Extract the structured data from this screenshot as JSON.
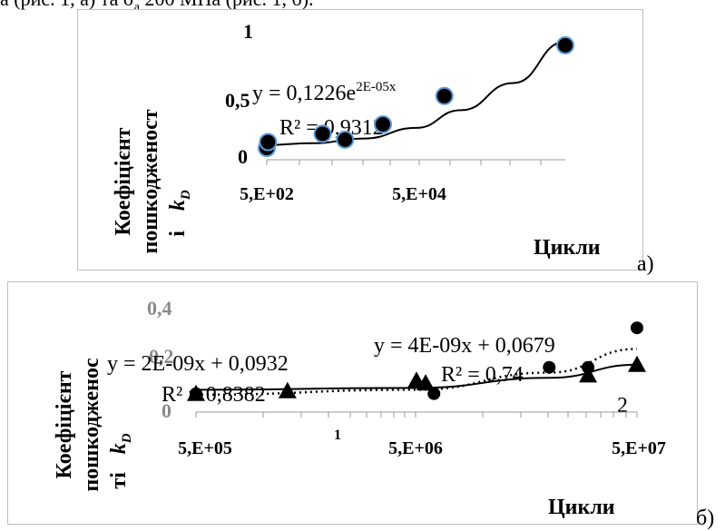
{
  "header_text": "а (рис. 1, а) та σ",
  "header_text_sub": "а",
  "header_text_rest": " 200 МПа (рис. 1, б).",
  "chart_data": [
    {
      "type": "scatter",
      "panel_label": "а)",
      "ylabel": "Коефіцієнт пошкодженості",
      "ylabel_line1": "Коефіцієнт",
      "ylabel_line2": "пошкодженост",
      "ylabel_line3": "і",
      "ylabel_sym": "k",
      "ylabel_sub": "D",
      "xlabel": "Цикли",
      "x_scale": "log",
      "xlim": [
        500,
        5000000
      ],
      "ylim": [
        0,
        1
      ],
      "y_ticks": [
        "0",
        "0,5",
        "1"
      ],
      "x_ticks": [
        "5,E+02",
        "5,E+04"
      ],
      "series": [
        {
          "marker": "circle",
          "color": "#000000",
          "edge": "#5b9bd5",
          "points": [
            [
              500,
              0.1
            ],
            [
              520,
              0.15
            ],
            [
              2800,
              0.22
            ],
            [
              5600,
              0.17
            ],
            [
              18000,
              0.3
            ],
            [
              120000,
              0.54
            ],
            [
              5000000,
              0.97
            ]
          ]
        }
      ],
      "trendline_equation": "y = 0,1226e",
      "trendline_exponent": "2E-05x",
      "trendline_r2": "R² = 0,9312",
      "trendline_curve": [
        [
          500,
          0.125
        ],
        [
          2000,
          0.14
        ],
        [
          10000,
          0.18
        ],
        [
          50000,
          0.27
        ],
        [
          200000,
          0.42
        ],
        [
          1000000,
          0.65
        ],
        [
          5000000,
          1.0
        ]
      ]
    },
    {
      "type": "scatter",
      "panel_label": "б)",
      "ylabel": "Коефіцієнт пошкодженості",
      "ylabel_line1": "Коефіцієнт",
      "ylabel_line2": "пошкодженос",
      "ylabel_line3": "ті",
      "ylabel_sym": "k",
      "ylabel_sub": "D",
      "xlabel": "Цикли",
      "x_scale": "log",
      "xlim": [
        500000,
        50000000
      ],
      "ylim": [
        0,
        0.4
      ],
      "y_ticks": [
        "0",
        "0,2",
        "0,4"
      ],
      "x_ticks": [
        "5,E+05",
        "5,E+06",
        "5,E+07"
      ],
      "stray_labels": [
        "1",
        "2"
      ],
      "series": [
        {
          "marker": "circle",
          "color": "#000000",
          "points": [
            [
              500000,
              0.07
            ],
            [
              6000000,
              0.07
            ],
            [
              20000000,
              0.17
            ],
            [
              30000000,
              0.17
            ],
            [
              50000000,
              0.32
            ]
          ]
        },
        {
          "marker": "triangle",
          "color": "#000000",
          "points": [
            [
              500000,
              0.07
            ],
            [
              1300000,
              0.08
            ],
            [
              5000000,
              0.12
            ],
            [
              5500000,
              0.11
            ],
            [
              30000000,
              0.14
            ],
            [
              50000000,
              0.18
            ]
          ]
        }
      ],
      "trendline1_equation": "y = 2E-09x + 0,0932",
      "trendline1_r2": "R² = 0,8382",
      "trendline2_equation": "y = 4E-09x + 0,0679",
      "trendline2_r2": "R² = 0,74",
      "trendline_solid": [
        [
          500000,
          0.085
        ],
        [
          5000000,
          0.092
        ],
        [
          20000000,
          0.13
        ],
        [
          50000000,
          0.18
        ]
      ],
      "trendline_dotted": [
        [
          500000,
          0.066
        ],
        [
          5000000,
          0.085
        ],
        [
          20000000,
          0.15
        ],
        [
          50000000,
          0.24
        ]
      ]
    }
  ]
}
